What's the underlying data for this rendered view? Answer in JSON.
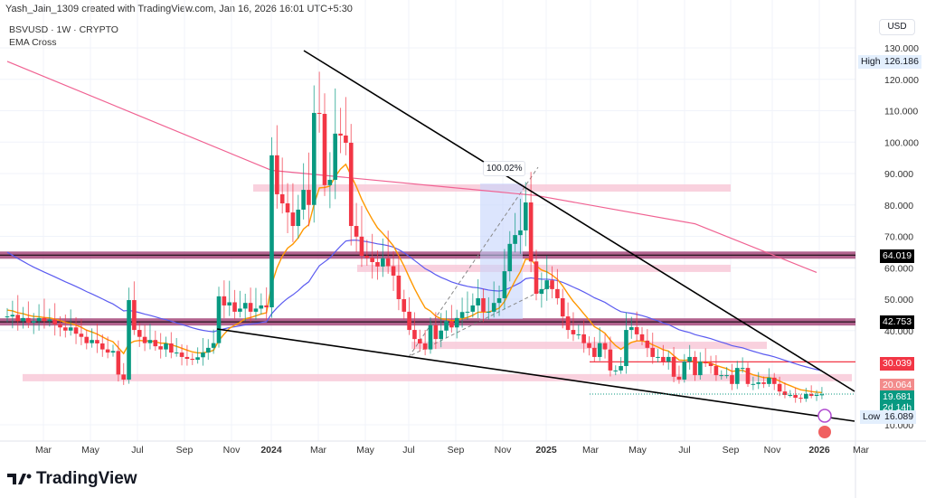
{
  "credit": "Yash_Jain_1309 created with TradingView.com, Jan 16, 2026 16:01 UTC+5:30",
  "header": {
    "symbol": "BSVUSD · 1W · CRYPTO",
    "indicator": "EMA Cross"
  },
  "currency": "USD",
  "brand": "TradingView",
  "colors": {
    "up": "#089981",
    "down": "#f23645",
    "ema_fast": "#ff9800",
    "ema_mid": "#5b5bf0",
    "ema_slow": "#f06292",
    "zone": "#f8c6d6",
    "level_band": "#a4487a"
  },
  "chart_data": {
    "type": "candlestick",
    "interval": "1W",
    "ylim": [
      3,
      135
    ],
    "y_ticks": [
      "130.000",
      "120.000",
      "110.000",
      "100.000",
      "90.000",
      "80.000",
      "70.000",
      "60.000",
      "50.000",
      "40.000",
      "10.000"
    ],
    "y_tick_values": [
      130,
      120,
      110,
      100,
      90,
      80,
      70,
      60,
      50,
      40,
      10
    ],
    "x_ticks": [
      "Mar",
      "May",
      "Jul",
      "Sep",
      "Nov",
      "2024",
      "Mar",
      "May",
      "Jul",
      "Sep",
      "Nov",
      "2025",
      "Mar",
      "May",
      "Jul",
      "Sep",
      "Nov",
      "2026",
      "Mar"
    ],
    "closes": [
      44.5,
      45,
      43,
      44,
      42.5,
      43,
      44,
      43,
      43.5,
      42,
      41,
      40,
      41,
      39,
      38,
      36,
      37,
      35.9,
      34,
      33,
      33.5,
      26,
      24.4,
      49.7,
      40.2,
      38,
      36,
      37,
      35,
      34,
      35.9,
      33,
      33,
      31.6,
      31,
      30.7,
      31.5,
      33,
      34.5,
      36,
      50.9,
      48,
      49,
      46,
      47,
      48.8,
      46,
      47,
      48,
      47.4,
      95.8,
      83.4,
      80.5,
      77.6,
      73.3,
      78.5,
      84.8,
      80,
      109.3,
      109,
      86.3,
      88,
      102.7,
      102.1,
      99.8,
      73.3,
      69.9,
      63.8,
      63.2,
      61.8,
      60.4,
      63,
      60.5,
      57.5,
      50,
      46,
      40.2,
      37.3,
      35.9,
      34,
      41.7,
      37.3,
      40,
      43,
      41,
      44,
      45.9,
      46,
      48,
      50.3,
      46,
      46,
      48.8,
      50.3,
      58.9,
      67.6,
      70.4,
      71.9,
      80.8,
      62,
      51.7,
      53.2,
      56,
      53.2,
      50.3,
      44.5,
      40.2,
      38.8,
      38.8,
      36,
      34.5,
      31.6,
      36,
      34,
      27.3,
      27.3,
      28.7,
      40.2,
      41.1,
      38.8,
      36.8,
      34.5,
      31.6,
      31.6,
      30.1,
      31.6,
      25.3,
      24.4,
      30.1,
      31.6,
      25.8,
      30.1,
      29.6,
      28.7,
      25.8,
      25.8,
      25.8,
      23,
      28.1,
      28.1,
      23,
      23,
      23.5,
      23,
      25,
      23,
      20.6,
      19.5,
      19.5,
      18.6,
      18.3,
      19.8,
      19.2,
      19.5,
      19.681
    ],
    "ema_slow_points": [
      [
        0,
        125.7
      ],
      [
        50,
        91
      ],
      [
        100,
        83
      ],
      [
        130,
        74
      ],
      [
        153,
        58.5
      ]
    ],
    "levels": [
      {
        "value": 64.019,
        "label": "64.019",
        "kind": "band"
      },
      {
        "value": 42.753,
        "label": "42.753",
        "kind": "band"
      },
      {
        "value": 30.039,
        "label": "30.039",
        "kind": "line"
      }
    ],
    "zones": [
      85.4,
      59.8,
      35.3,
      25
    ],
    "high": {
      "label": "High",
      "value": "126.186"
    },
    "low": {
      "label": "Low",
      "value": "16.089"
    },
    "ema_tag": "20.064",
    "last_price": "19.681",
    "countdown": "2d 14h",
    "measure_label": "100.02%"
  }
}
